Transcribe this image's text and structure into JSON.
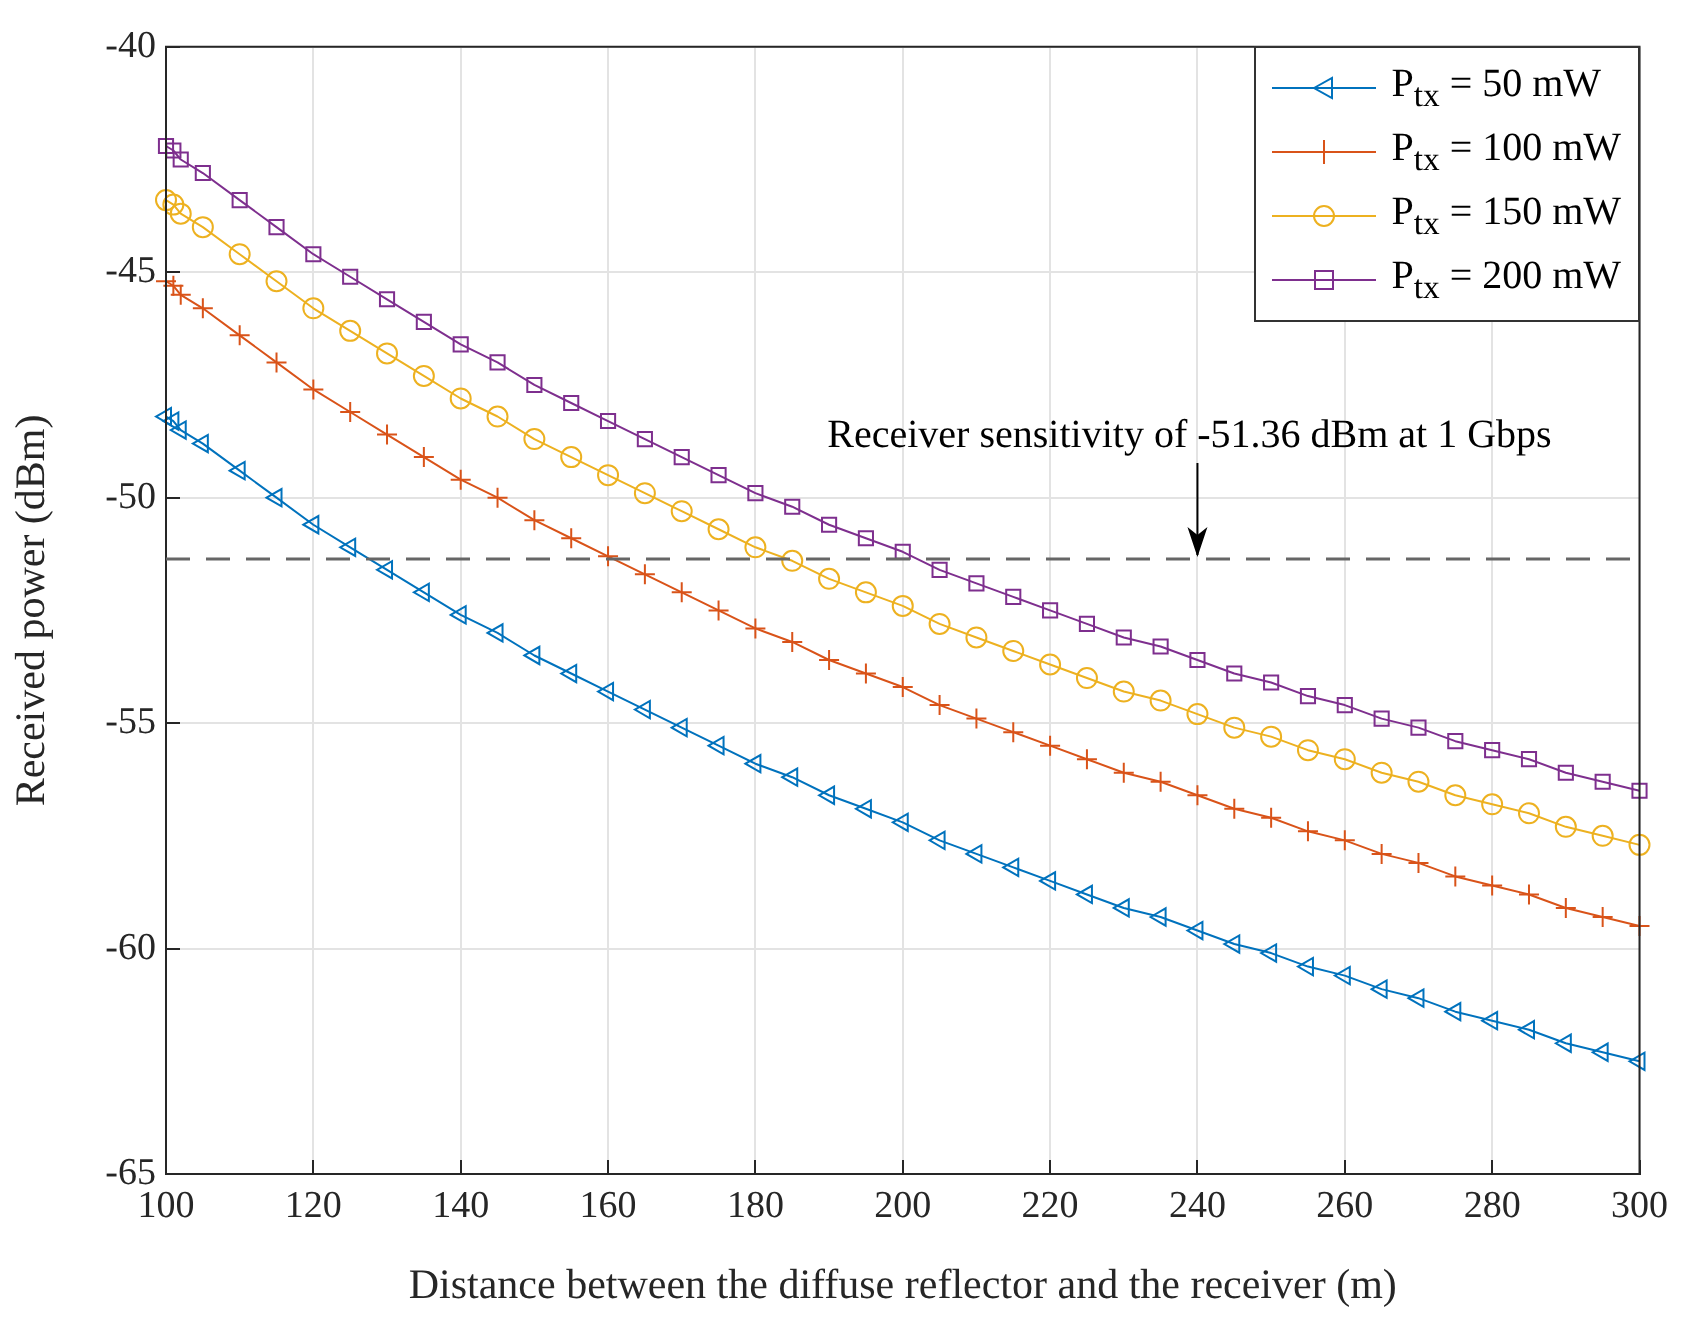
{
  "chart_data": {
    "type": "line",
    "xlabel": "Distance between the diffuse reflector and the receiver (m)",
    "ylabel": "Received power (dBm)",
    "x": [
      100,
      101,
      102,
      105,
      110,
      115,
      120,
      125,
      130,
      135,
      140,
      145,
      150,
      155,
      160,
      165,
      170,
      175,
      180,
      185,
      190,
      195,
      200,
      205,
      210,
      215,
      220,
      225,
      230,
      235,
      240,
      245,
      250,
      255,
      260,
      265,
      270,
      275,
      280,
      285,
      290,
      295,
      300
    ],
    "series": [
      {
        "name": "P$_{tx}$ = 50 mW",
        "color": "#0072bd",
        "marker": "triangle",
        "values": [
          -48.2,
          -48.3,
          -48.5,
          -48.8,
          -49.4,
          -50.0,
          -50.6,
          -51.1,
          -51.6,
          -52.1,
          -52.6,
          -53.0,
          -53.5,
          -53.9,
          -54.3,
          -54.7,
          -55.1,
          -55.5,
          -55.9,
          -56.2,
          -56.6,
          -56.9,
          -57.2,
          -57.6,
          -57.9,
          -58.2,
          -58.5,
          -58.8,
          -59.1,
          -59.3,
          -59.6,
          -59.9,
          -60.1,
          -60.4,
          -60.6,
          -60.9,
          -61.1,
          -61.4,
          -61.6,
          -61.8,
          -62.1,
          -62.3,
          -62.5
        ]
      },
      {
        "name": "P$_{tx}$ = 100 mW",
        "color": "#d95319",
        "marker": "cross",
        "values": [
          -45.2,
          -45.3,
          -45.5,
          -45.8,
          -46.4,
          -47.0,
          -47.6,
          -48.1,
          -48.6,
          -49.1,
          -49.6,
          -50.0,
          -50.5,
          -50.9,
          -51.3,
          -51.7,
          -52.1,
          -52.5,
          -52.9,
          -53.2,
          -53.6,
          -53.9,
          -54.2,
          -54.6,
          -54.9,
          -55.2,
          -55.5,
          -55.8,
          -56.1,
          -56.3,
          -56.6,
          -56.9,
          -57.1,
          -57.4,
          -57.6,
          -57.9,
          -58.1,
          -58.4,
          -58.6,
          -58.8,
          -59.1,
          -59.3,
          -59.5
        ]
      },
      {
        "name": "P$_{tx}$ = 150 mW",
        "color": "#edb120",
        "marker": "circle",
        "values": [
          -43.4,
          -43.5,
          -43.7,
          -44.0,
          -44.6,
          -45.2,
          -45.8,
          -46.3,
          -46.8,
          -47.3,
          -47.8,
          -48.2,
          -48.7,
          -49.1,
          -49.5,
          -49.9,
          -50.3,
          -50.7,
          -51.1,
          -51.4,
          -51.8,
          -52.1,
          -52.4,
          -52.8,
          -53.1,
          -53.4,
          -53.7,
          -54.0,
          -54.3,
          -54.5,
          -54.8,
          -55.1,
          -55.3,
          -55.6,
          -55.8,
          -56.1,
          -56.3,
          -56.6,
          -56.8,
          -57.0,
          -57.3,
          -57.5,
          -57.7
        ]
      },
      {
        "name": "P$_{tx}$ = 200 mW",
        "color": "#7e2f8e",
        "marker": "square",
        "values": [
          -42.2,
          -42.3,
          -42.5,
          -42.8,
          -43.4,
          -44.0,
          -44.6,
          -45.1,
          -45.6,
          -46.1,
          -46.6,
          -47.0,
          -47.5,
          -47.9,
          -48.3,
          -48.7,
          -49.1,
          -49.5,
          -49.9,
          -50.2,
          -50.6,
          -50.9,
          -51.2,
          -51.6,
          -51.9,
          -52.2,
          -52.5,
          -52.8,
          -53.1,
          -53.3,
          -53.6,
          -53.9,
          -54.1,
          -54.4,
          -54.6,
          -54.9,
          -55.1,
          -55.4,
          -55.6,
          -55.8,
          -56.1,
          -56.3,
          -56.5
        ]
      }
    ],
    "xlim": [
      100,
      300
    ],
    "xticks": [
      100,
      120,
      140,
      160,
      180,
      200,
      220,
      240,
      260,
      280,
      300
    ],
    "ylim": [
      -65,
      -40
    ],
    "yticks": [
      -65,
      -60,
      -55,
      -50,
      -45,
      -40
    ],
    "grid": true,
    "legend": "top right",
    "line_style": "solid",
    "ref_lines": [
      {
        "axis": "y",
        "value": -51.36,
        "color": "#666666",
        "line_style": "dashed"
      }
    ],
    "annotations": [
      {
        "text": "Receiver sensitivity of -51.36 dBm at 1 Gbps",
        "x": 240,
        "y": -51.36
      }
    ]
  }
}
